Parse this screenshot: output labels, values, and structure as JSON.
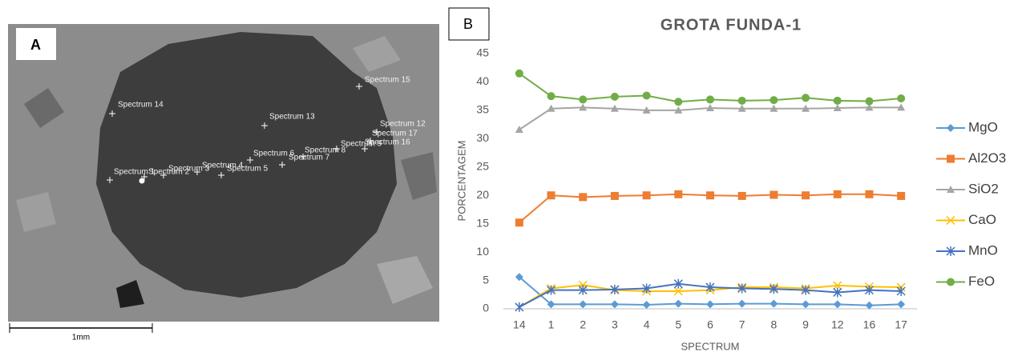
{
  "panel_a": {
    "label": "A",
    "scale_bar": "1mm",
    "spectrum_labels": [
      "Spectrum 15",
      "Spectrum 14",
      "Spectrum 13",
      "Spectrum 12",
      "Spectrum 17",
      "Spectrum 16",
      "Spectrum 9",
      "Spectrum 8",
      "Spectrum 6",
      "Spectrum 7",
      "Spectrum 5",
      "Spectrum 4",
      "Spectrum 3",
      "Spectrum 2",
      "Spectrum 1"
    ]
  },
  "panel_b_label": "B",
  "chart_data": {
    "type": "line",
    "title": "GROTA FUNDA-1",
    "x_label": "SPECTRUM",
    "y_label": "PORCENTAGEM",
    "categories": [
      "14",
      "1",
      "2",
      "3",
      "4",
      "5",
      "6",
      "7",
      "8",
      "9",
      "12",
      "16",
      "17"
    ],
    "ylim": [
      0,
      45
    ],
    "yticks": [
      0,
      5,
      10,
      15,
      20,
      25,
      30,
      35,
      40,
      45
    ],
    "grid": false,
    "legend": "right",
    "series": [
      {
        "name": "MgO",
        "color": "#5b9bd5",
        "marker": "diamond",
        "values": [
          5.6,
          0.8,
          0.8,
          0.8,
          0.7,
          0.9,
          0.8,
          0.9,
          0.9,
          0.8,
          0.8,
          0.6,
          0.8
        ]
      },
      {
        "name": "Al2O3",
        "color": "#ed7d31",
        "marker": "square",
        "values": [
          15.2,
          20.0,
          19.7,
          19.9,
          20.0,
          20.2,
          20.0,
          19.9,
          20.1,
          20.0,
          20.2,
          20.2,
          19.9
        ]
      },
      {
        "name": "SiO2",
        "color": "#a5a5a5",
        "marker": "triangle",
        "values": [
          31.6,
          35.3,
          35.5,
          35.3,
          35.0,
          35.0,
          35.4,
          35.3,
          35.3,
          35.3,
          35.4,
          35.5,
          35.5
        ]
      },
      {
        "name": "CaO",
        "color": "#ffc000",
        "marker": "x",
        "values": [
          0.3,
          3.6,
          4.2,
          3.3,
          3.1,
          3.1,
          3.3,
          3.8,
          3.8,
          3.6,
          4.1,
          3.9,
          3.8
        ]
      },
      {
        "name": "MnO",
        "color": "#4472c4",
        "marker": "star",
        "values": [
          0.3,
          3.3,
          3.3,
          3.4,
          3.6,
          4.4,
          3.8,
          3.6,
          3.5,
          3.3,
          2.9,
          3.3,
          3.1
        ]
      },
      {
        "name": "FeO",
        "color": "#70ad47",
        "marker": "circle",
        "values": [
          41.5,
          37.5,
          36.9,
          37.4,
          37.6,
          36.5,
          36.9,
          36.7,
          36.8,
          37.2,
          36.7,
          36.6,
          37.1
        ]
      }
    ]
  }
}
